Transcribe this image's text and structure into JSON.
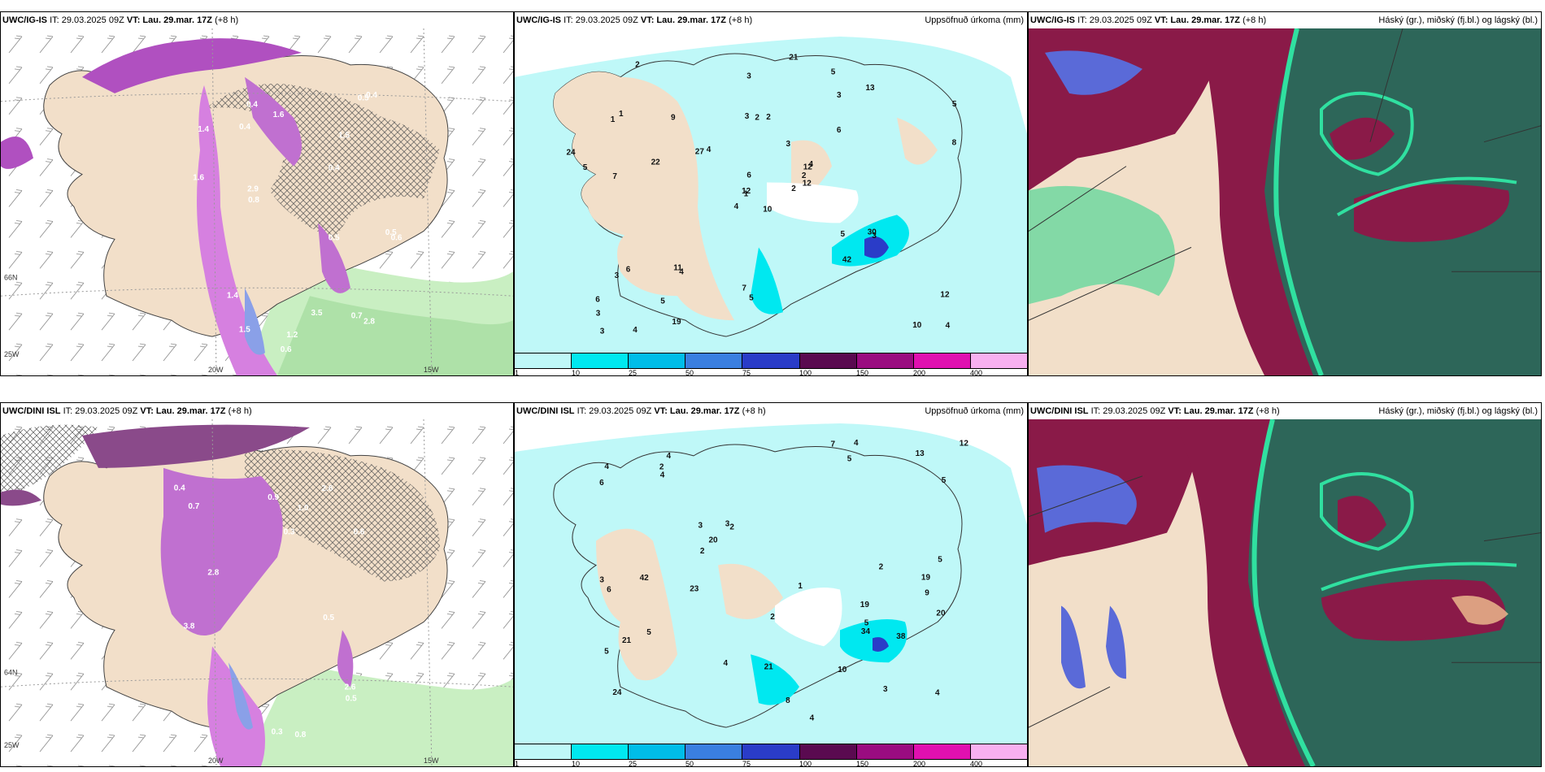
{
  "panels": {
    "p1": {
      "model": "UWC/IG-IS",
      "it": "IT: 29.03.2025 09Z",
      "vt_label": "VT:",
      "vt": "Lau. 29.mar. 17Z",
      "lead": "(+8 h)",
      "right": ""
    },
    "p2": {
      "model": "UWC/IG-IS",
      "it": "IT: 29.03.2025 09Z",
      "vt_label": "VT:",
      "vt": "Lau. 29.mar. 17Z",
      "lead": "(+8 h)",
      "right": "Uppsöfnuð úrkoma (mm)"
    },
    "p3": {
      "model": "UWC/IG-IS",
      "it": "IT: 29.03.2025 09Z",
      "vt_label": "VT:",
      "vt": "Lau. 29.mar. 17Z",
      "lead": "(+8 h)",
      "right": "Háský (gr.), miðský (fj.bl.) og lágský (bl.)"
    },
    "p4": {
      "model": "UWC/DINI ISL",
      "it": "IT: 29.03.2025 09Z",
      "vt_label": "VT:",
      "vt": "Lau. 29.mar. 17Z",
      "lead": "(+8 h)",
      "right": ""
    },
    "p5": {
      "model": "UWC/DINI ISL",
      "it": "IT: 29.03.2025 09Z",
      "vt_label": "VT:",
      "vt": "Lau. 29.mar. 17Z",
      "lead": "(+8 h)",
      "right": "Uppsöfnuð úrkoma (mm)"
    },
    "p6": {
      "model": "UWC/DINI ISL",
      "it": "IT: 29.03.2025 09Z",
      "vt_label": "VT:",
      "vt": "Lau. 29.mar. 17Z",
      "lead": "(+8 h)",
      "right": "Háský (gr.), miðský (fj.bl.) og lágský (bl.)"
    }
  },
  "axis_labels": {
    "lon1": "20W",
    "lon2": "15W",
    "lon3": "25W",
    "lat": "66N",
    "lat2": "64N"
  },
  "colorbar": {
    "ticks": [
      "1",
      "10",
      "25",
      "50",
      "75",
      "100",
      "150",
      "200",
      "400"
    ],
    "colors": [
      "#bff8f8",
      "#00e8f0",
      "#00bde8",
      "#3a7fe0",
      "#2a3cc8",
      "#5a0a50",
      "#9a0c80",
      "#e010b0",
      "#f8b0f0"
    ]
  },
  "precip_labels_top": [
    "10",
    "1",
    "1",
    "6",
    "12",
    "4",
    "5",
    "2",
    "3",
    "2",
    "2",
    "4",
    "7",
    "5",
    "4",
    "6",
    "4",
    "3",
    "3",
    "6",
    "4",
    "3",
    "5",
    "2",
    "4",
    "3",
    "1",
    "3",
    "5",
    "5",
    "8",
    "12",
    "7",
    "6",
    "9",
    "13",
    "11",
    "10",
    "12",
    "30",
    "21",
    "27",
    "22",
    "42",
    "19",
    "24",
    "2",
    "3",
    "5",
    "12",
    "3"
  ],
  "precip_labels_bottom": [
    "19",
    "9",
    "24",
    "4",
    "2",
    "3",
    "5",
    "5",
    "3",
    "4",
    "6",
    "3",
    "4",
    "4",
    "4",
    "5",
    "2",
    "1",
    "3",
    "5",
    "12",
    "13",
    "2",
    "20",
    "7",
    "2",
    "5",
    "6",
    "4",
    "2",
    "8",
    "10",
    "20",
    "23",
    "19",
    "38",
    "34",
    "42",
    "21",
    "21",
    "5",
    "4"
  ],
  "snow_labels_top": [
    "1.4",
    "0.4",
    "0.4",
    "1.2",
    "0.5",
    "0.6",
    "0.5",
    "0.8",
    "0.4",
    "0.6",
    "0.5",
    "0.4",
    "1.5",
    "1.4",
    "1.6",
    "1.5",
    "2.9",
    "1.6",
    "2.8",
    "3.5",
    "0.7"
  ],
  "snow_labels_bottom": [
    "0.3",
    "0.5",
    "0.4",
    "0.6",
    "0.3",
    "0.9",
    "0.8",
    "2.6",
    "2.8",
    "3.8",
    "2.6",
    "1.0",
    "0.5",
    "0.7"
  ]
}
